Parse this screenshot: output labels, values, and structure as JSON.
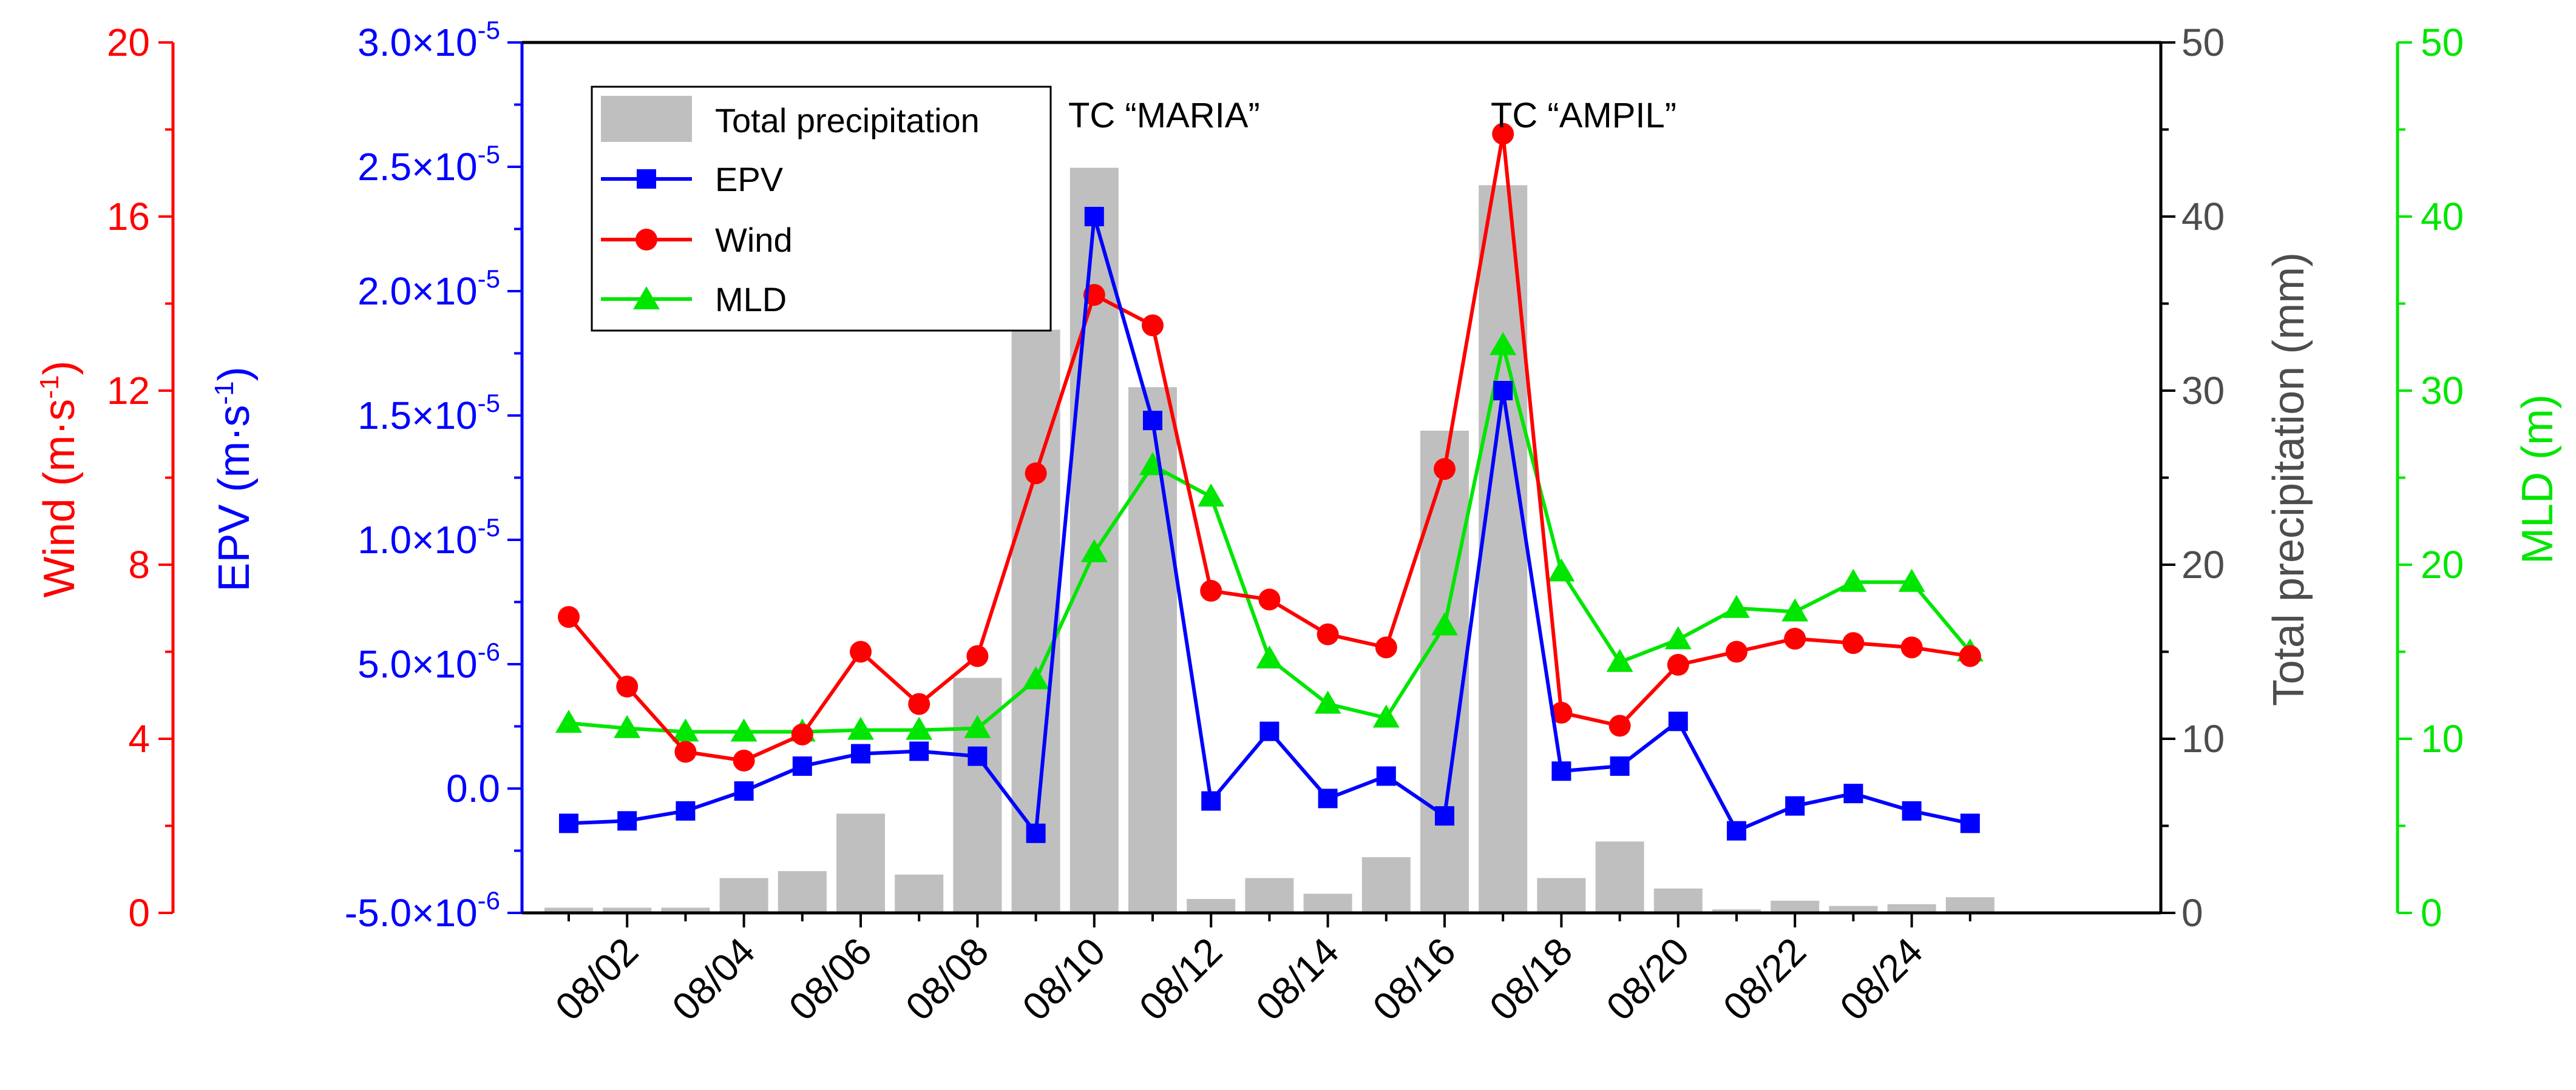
{
  "colors": {
    "wind": "#ff0000",
    "epv": "#0000ff",
    "precip": "#4d4d4d",
    "precip_bar": "#bfbfbf",
    "mld": "#00e600",
    "frame": "#000000"
  },
  "chart_data": {
    "type": "bar+line",
    "title": "",
    "dates": [
      "08/01",
      "08/02",
      "08/03",
      "08/04",
      "08/05",
      "08/06",
      "08/07",
      "08/08",
      "08/09",
      "08/10",
      "08/11",
      "08/12",
      "08/13",
      "08/14",
      "08/15",
      "08/16",
      "08/17",
      "08/18",
      "08/19",
      "08/20",
      "08/21",
      "08/22",
      "08/23",
      "08/24",
      "08/25"
    ],
    "x_tick_labels": [
      "08/02",
      "08/04",
      "08/06",
      "08/08",
      "08/10",
      "08/12",
      "08/14",
      "08/16",
      "08/18",
      "08/20",
      "08/22",
      "08/24"
    ],
    "axes": {
      "wind": {
        "label_main": "Wind (m·s",
        "label_sup": "-1",
        "label_end": ")",
        "ylim": [
          0,
          20
        ],
        "ticks": [
          "0",
          "4",
          "8",
          "12",
          "16",
          "20"
        ],
        "tick_values": [
          0,
          4,
          8,
          12,
          16,
          20
        ],
        "side": "left-outer"
      },
      "epv": {
        "label_main": "EPV (m·s",
        "label_sup": "-1",
        "label_end": ")",
        "ylim": [
          -5e-06,
          3e-05
        ],
        "ticks": [
          {
            "value": -5e-06,
            "mant": "-5.0×10",
            "exp": "-6"
          },
          {
            "value": 0,
            "mant": "0.0",
            "exp": ""
          },
          {
            "value": 5e-06,
            "mant": "5.0×10",
            "exp": "-6"
          },
          {
            "value": 1e-05,
            "mant": "1.0×10",
            "exp": "-5"
          },
          {
            "value": 1.5e-05,
            "mant": "1.5×10",
            "exp": "-5"
          },
          {
            "value": 2e-05,
            "mant": "2.0×10",
            "exp": "-5"
          },
          {
            "value": 2.5e-05,
            "mant": "2.5×10",
            "exp": "-5"
          },
          {
            "value": 3e-05,
            "mant": "3.0×10",
            "exp": "-5"
          }
        ],
        "side": "left-inner"
      },
      "precip": {
        "label": "Total precipitation (mm)",
        "ylim": [
          0,
          50
        ],
        "ticks": [
          "0",
          "10",
          "20",
          "30",
          "40",
          "50"
        ],
        "tick_values": [
          0,
          10,
          20,
          30,
          40,
          50
        ],
        "side": "right-inner"
      },
      "mld": {
        "label": "MLD (m)",
        "ylim": [
          0,
          50
        ],
        "ticks": [
          "0",
          "10",
          "20",
          "30",
          "40",
          "50"
        ],
        "tick_values": [
          0,
          10,
          20,
          30,
          40,
          50
        ],
        "side": "right-outer"
      }
    },
    "series": [
      {
        "name": "Total precipitation",
        "type": "bar",
        "axis": "precip",
        "values": [
          0.3,
          0.3,
          0.3,
          2.0,
          2.4,
          5.7,
          2.2,
          13.5,
          33.5,
          42.8,
          30.2,
          0.8,
          2.0,
          1.1,
          3.2,
          27.7,
          41.8,
          2.0,
          4.1,
          1.4,
          0.2,
          0.7,
          0.4,
          0.5,
          0.9
        ]
      },
      {
        "name": "EPV",
        "type": "line",
        "marker": "square",
        "axis": "epv",
        "values": [
          -1.4e-06,
          -1.3e-06,
          -9e-07,
          -1e-07,
          9e-07,
          1.4e-06,
          1.5e-06,
          1.3e-06,
          -1.8e-06,
          2.3e-05,
          1.48e-05,
          -5e-07,
          2.3e-06,
          -4e-07,
          5e-07,
          -1.1e-06,
          1.6e-05,
          7e-07,
          9e-07,
          2.7e-06,
          -1.7e-06,
          -7e-07,
          -2e-07,
          -9e-07,
          -1.4e-06
        ]
      },
      {
        "name": "Wind",
        "type": "line",
        "marker": "circle",
        "axis": "wind",
        "values": [
          6.8,
          5.2,
          3.7,
          3.5,
          4.1,
          6.0,
          4.8,
          5.9,
          10.1,
          14.2,
          13.5,
          7.4,
          7.2,
          6.4,
          6.1,
          10.2,
          17.9,
          4.6,
          4.3,
          5.7,
          6.0,
          6.3,
          6.2,
          6.1,
          5.9
        ]
      },
      {
        "name": "MLD",
        "type": "line",
        "marker": "triangle",
        "axis": "mld",
        "values": [
          10.9,
          10.6,
          10.4,
          10.4,
          10.4,
          10.5,
          10.5,
          10.6,
          13.4,
          20.7,
          25.7,
          23.9,
          14.6,
          12.0,
          11.2,
          16.5,
          32.6,
          19.6,
          14.4,
          15.7,
          17.5,
          17.3,
          19.0,
          19.0,
          15.0
        ]
      }
    ],
    "legend": {
      "position": "top-left",
      "entries": [
        "Total precipitation",
        "EPV",
        "Wind",
        "MLD"
      ]
    },
    "annotations": [
      {
        "text": "TC “MARIA”",
        "near_date": "08/10"
      },
      {
        "text": "TC “AMPIL”",
        "near_date": "08/17"
      }
    ]
  }
}
